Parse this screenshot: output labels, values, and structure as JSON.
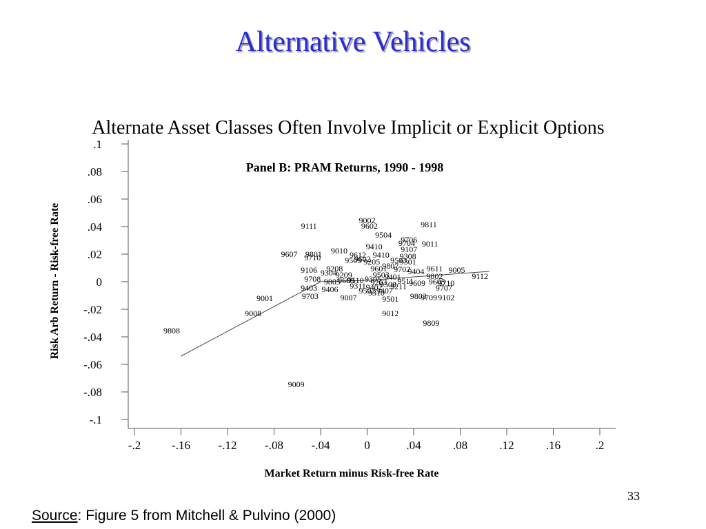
{
  "slide": {
    "title": "Alternative Vehicles",
    "subtitle": "Alternate Asset Classes Often Involve Implicit or Explicit Options",
    "page_number": "33",
    "source_label": "Source",
    "source_text": ": Figure 5 from Mitchell & Pulvino (2000)",
    "title_color": "#2929d6"
  },
  "chart_data": {
    "type": "scatter",
    "title": "Panel B: PRAM Returns, 1990 - 1998",
    "xlabel": "Market Return minus Risk-free Rate",
    "ylabel": "Risk Arb Return - Risk-free Rate",
    "xlim": [
      -0.2,
      0.2
    ],
    "ylim": [
      -0.1,
      0.1
    ],
    "xticks": [
      -0.2,
      -0.16,
      -0.12,
      -0.08,
      -0.04,
      0,
      0.04,
      0.08,
      0.12,
      0.16,
      0.2
    ],
    "xtick_labels": [
      "-.2",
      "-.16",
      "-.12",
      "-.08",
      "-.04",
      "0",
      ".04",
      ".08",
      ".12",
      ".16",
      ".2"
    ],
    "yticks": [
      0.1,
      0.08,
      0.06,
      0.04,
      0.02,
      0,
      -0.02,
      -0.04,
      -0.06,
      -0.08,
      -0.1
    ],
    "ytick_labels": [
      ".1",
      ".08",
      ".06",
      ".04",
      ".02",
      "0",
      "-.02",
      "-.04",
      "-.06",
      "-.08",
      "-.1"
    ],
    "grid": false,
    "legend": "none",
    "marker": "month label",
    "fit_line": [
      {
        "x": -0.16,
        "y": -0.054
      },
      {
        "x": -0.04,
        "y": 0.0
      },
      {
        "x": 0.0,
        "y": 0.001
      },
      {
        "x": 0.105,
        "y": 0.0075
      }
    ],
    "points": [
      {
        "label": "9002",
        "x": 0.0,
        "y": 0.0445
      },
      {
        "label": "9602",
        "x": 0.002,
        "y": 0.0405
      },
      {
        "label": "9111",
        "x": -0.05,
        "y": 0.0405
      },
      {
        "label": "9811",
        "x": 0.053,
        "y": 0.0415
      },
      {
        "label": "9504",
        "x": 0.014,
        "y": 0.034
      },
      {
        "label": "9706",
        "x": 0.036,
        "y": 0.0305
      },
      {
        "label": "9704",
        "x": 0.034,
        "y": 0.028
      },
      {
        "label": "9011",
        "x": 0.054,
        "y": 0.0275
      },
      {
        "label": "9410",
        "x": 0.006,
        "y": 0.0255
      },
      {
        "label": "9107",
        "x": 0.036,
        "y": 0.0235
      },
      {
        "label": "9010",
        "x": -0.024,
        "y": 0.0225
      },
      {
        "label": "9607",
        "x": -0.067,
        "y": 0.02
      },
      {
        "label": "9710",
        "x": -0.047,
        "y": 0.0175
      },
      {
        "label": "9308",
        "x": 0.035,
        "y": 0.0185
      },
      {
        "label": "9503",
        "x": 0.027,
        "y": 0.0155
      },
      {
        "label": "9301",
        "x": 0.035,
        "y": 0.0145
      },
      {
        "label": "9611",
        "x": 0.058,
        "y": 0.0095
      },
      {
        "label": "9005",
        "x": 0.077,
        "y": 0.0085
      },
      {
        "label": "9106",
        "x": -0.05,
        "y": 0.0085
      },
      {
        "label": "9208",
        "x": -0.028,
        "y": 0.0095
      },
      {
        "label": "9112",
        "x": 0.097,
        "y": 0.004
      },
      {
        "label": "9802",
        "x": 0.058,
        "y": 0.004
      },
      {
        "label": "9708",
        "x": -0.047,
        "y": 0.002
      },
      {
        "label": "9805",
        "x": -0.03,
        "y": 0.0
      },
      {
        "label": "9510",
        "x": -0.01,
        "y": 0.001
      },
      {
        "label": "9609",
        "x": 0.043,
        "y": -0.001
      },
      {
        "label": "9605",
        "x": 0.06,
        "y": 0.0
      },
      {
        "label": "9710",
        "x": 0.068,
        "y": -0.001
      },
      {
        "label": "9707",
        "x": 0.066,
        "y": -0.0045
      },
      {
        "label": "9403",
        "x": -0.05,
        "y": -0.0045
      },
      {
        "label": "9406",
        "x": -0.032,
        "y": -0.0055
      },
      {
        "label": "9703",
        "x": -0.049,
        "y": -0.0105
      },
      {
        "label": "9001",
        "x": -0.088,
        "y": -0.012
      },
      {
        "label": "9007",
        "x": -0.016,
        "y": -0.0115
      },
      {
        "label": "9501",
        "x": 0.02,
        "y": -0.0125
      },
      {
        "label": "9803",
        "x": 0.044,
        "y": -0.0105
      },
      {
        "label": "9709",
        "x": 0.053,
        "y": -0.0115
      },
      {
        "label": "9102",
        "x": 0.068,
        "y": -0.0115
      },
      {
        "label": "9008",
        "x": -0.098,
        "y": -0.023
      },
      {
        "label": "9012",
        "x": 0.02,
        "y": -0.023
      },
      {
        "label": "9809",
        "x": 0.055,
        "y": -0.03
      },
      {
        "label": "9808",
        "x": -0.168,
        "y": -0.0355
      },
      {
        "label": "9009",
        "x": -0.061,
        "y": -0.0745
      },
      {
        "label": "9801",
        "x": -0.046,
        "y": 0.02
      },
      {
        "label": "9612",
        "x": -0.008,
        "y": 0.0195
      },
      {
        "label": "9410",
        "x": 0.012,
        "y": 0.0195
      },
      {
        "label": "9602",
        "x": -0.004,
        "y": 0.0165
      },
      {
        "label": "9509",
        "x": -0.012,
        "y": 0.0155
      },
      {
        "label": "9205",
        "x": 0.004,
        "y": 0.0145
      },
      {
        "label": "9807",
        "x": 0.02,
        "y": 0.0115
      },
      {
        "label": "9601",
        "x": 0.01,
        "y": 0.0095
      },
      {
        "label": "9702",
        "x": 0.03,
        "y": 0.009
      },
      {
        "label": "9404",
        "x": 0.042,
        "y": 0.0075
      },
      {
        "label": "9304",
        "x": -0.033,
        "y": 0.0065
      },
      {
        "label": "9209",
        "x": -0.02,
        "y": 0.005
      },
      {
        "label": "9503",
        "x": 0.012,
        "y": 0.005
      },
      {
        "label": "9401",
        "x": 0.022,
        "y": 0.0035
      },
      {
        "label": "9305",
        "x": 0.005,
        "y": 0.002
      },
      {
        "label": "9609",
        "x": -0.018,
        "y": 0.001
      },
      {
        "label": "9511",
        "x": 0.033,
        "y": 0.0005
      },
      {
        "label": "9203",
        "x": 0.01,
        "y": -0.0005
      },
      {
        "label": "9508",
        "x": 0.018,
        "y": -0.002
      },
      {
        "label": "9311",
        "x": -0.008,
        "y": -0.003
      },
      {
        "label": "9211",
        "x": 0.027,
        "y": -0.0035
      },
      {
        "label": "9402",
        "x": 0.006,
        "y": -0.004
      },
      {
        "label": "9502",
        "x": 0.0,
        "y": -0.0065
      },
      {
        "label": "9407",
        "x": 0.015,
        "y": -0.0065
      },
      {
        "label": "9310",
        "x": 0.008,
        "y": -0.008
      }
    ]
  }
}
